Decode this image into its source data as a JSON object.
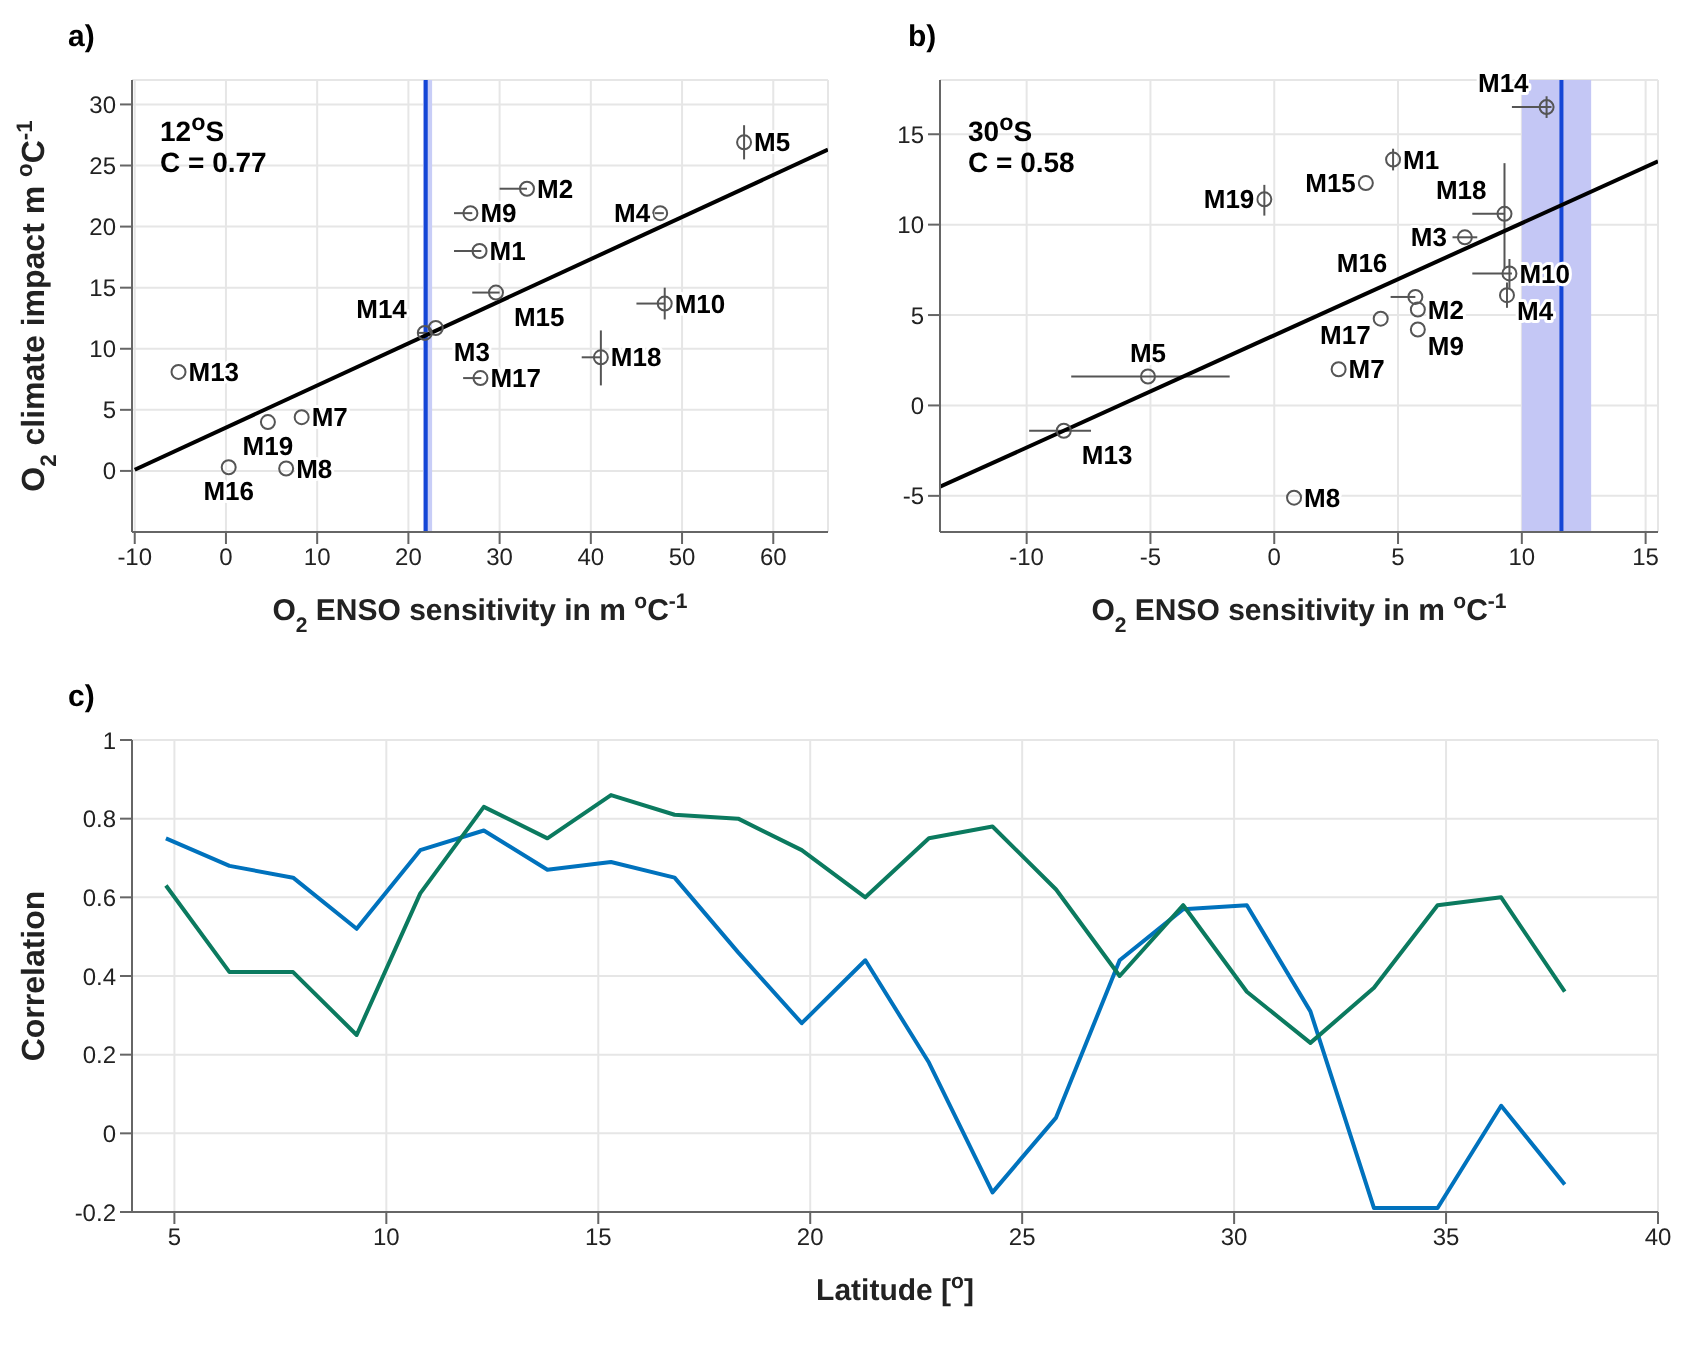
{
  "chart_data": [
    {
      "type": "scatter",
      "title": "a)",
      "xlabel": "O$_{2}$ ENSO sensitivity in m $^{o}$C$^{-1}$",
      "ylabel": "O$_{2}$ climate impact m $^{o}$C$^{-1}$",
      "xlim": [
        -10.3,
        66
      ],
      "xticks": [
        -10,
        0,
        10,
        20,
        30,
        40,
        50,
        60
      ],
      "ylim": [
        -5,
        32
      ],
      "yticks": [
        0,
        5,
        10,
        15,
        20,
        25,
        30
      ],
      "grid": true,
      "series": [
        {
          "type": "scatter",
          "marker": "circle",
          "color": "#555555",
          "x": [
            27.8,
            33,
            23,
            47.6,
            56.8,
            8.3,
            6.6,
            26.8,
            48.1,
            -5.2,
            21.8,
            29.6,
            0.3,
            27.9,
            41.1,
            4.6
          ],
          "values": [
            18,
            23.1,
            11.7,
            21.1,
            26.9,
            4.4,
            0.2,
            21.1,
            13.7,
            8.1,
            11.3,
            14.6,
            0.3,
            7.6,
            9.3,
            4.0
          ],
          "errors": [
            null,
            null,
            null,
            null,
            [
              25.5,
              28.3
            ],
            null,
            null,
            null,
            [
              12.4,
              15
            ],
            null,
            null,
            null,
            null,
            null,
            [
              7,
              11.5
            ],
            null
          ],
          "xerrors": [
            [
              25,
              28
            ],
            [
              30,
              33
            ],
            null,
            [
              47,
              48
            ],
            null,
            null,
            null,
            [
              25,
              27
            ],
            [
              45,
              48.1
            ],
            null,
            [
              21,
              22
            ],
            [
              27,
              30
            ],
            null,
            [
              26,
              28
            ],
            [
              39,
              41.1
            ],
            null
          ]
        },
        {
          "type": "line",
          "color": "#000000",
          "x": [
            -10,
            66
          ],
          "values": [
            0.1,
            26.3
          ]
        }
      ],
      "ref_lines": [
        {
          "axis": "x",
          "value": 21.9,
          "color": "#1446d6"
        }
      ],
      "bands": [
        {
          "axis": "x",
          "from": 21.6,
          "to": 22.6,
          "color": "#c8cdf7"
        }
      ],
      "annotations": [
        "12$^{o}$S",
        "C = 0.77",
        {
          "text": "M1",
          "x": 27.8,
          "y": 18
        },
        {
          "text": "M2",
          "x": 33,
          "y": 23.1
        },
        {
          "text": "M3",
          "x": 23,
          "y": 11.7
        },
        {
          "text": "M4",
          "x": 47.6,
          "y": 21.1
        },
        {
          "text": "M5",
          "x": 56.8,
          "y": 26.9
        },
        {
          "text": "M7",
          "x": 8.3,
          "y": 4.4
        },
        {
          "text": "M8",
          "x": 6.6,
          "y": 0.2
        },
        {
          "text": "M9",
          "x": 26.8,
          "y": 21.1
        },
        {
          "text": "M10",
          "x": 48.1,
          "y": 13.7
        },
        {
          "text": "M13",
          "x": -5.2,
          "y": 8.1
        },
        {
          "text": "M14",
          "x": 21.8,
          "y": 11.3
        },
        {
          "text": "M15",
          "x": 29.6,
          "y": 14.6
        },
        {
          "text": "M16",
          "x": 0.3,
          "y": 0.3
        },
        {
          "text": "M17",
          "x": 27.9,
          "y": 7.6
        },
        {
          "text": "M18",
          "x": 41.1,
          "y": 9.3
        },
        {
          "text": "M19",
          "x": 4.6,
          "y": 4.0
        }
      ]
    },
    {
      "type": "scatter",
      "title": "b)",
      "xlabel": "O$_{2}$ ENSO sensitivity in m $^{o}$C$^{-1}$",
      "xlim": [
        -13.5,
        15.5
      ],
      "xticks": [
        -10,
        -5,
        0,
        5,
        10,
        15
      ],
      "ylim": [
        -7,
        18
      ],
      "yticks": [
        -5,
        0,
        5,
        10,
        15
      ],
      "grid": true,
      "series": [
        {
          "type": "scatter",
          "marker": "circle",
          "color": "#555555",
          "x": [
            4.8,
            5.8,
            7.7,
            9.4,
            -5.1,
            2.6,
            0.8,
            5.8,
            9.5,
            -8.5,
            11,
            3.7,
            5.7,
            4.3,
            9.3,
            -0.4
          ],
          "values": [
            13.6,
            5.3,
            9.3,
            6.1,
            1.6,
            2.0,
            -5.1,
            4.2,
            7.3,
            -1.4,
            16.5,
            12.3,
            6.0,
            4.8,
            10.6,
            11.4
          ],
          "errors": [
            [
              13,
              14.2
            ],
            null,
            null,
            [
              5.4,
              6.8
            ],
            null,
            null,
            null,
            null,
            [
              6.5,
              8.1
            ],
            null,
            [
              15.9,
              17.1
            ],
            null,
            null,
            null,
            [
              7.6,
              13.4
            ],
            [
              10.5,
              12.2
            ]
          ],
          "xerrors": [
            null,
            null,
            [
              7.2,
              8.2
            ],
            null,
            [
              -8.2,
              -1.8
            ],
            null,
            null,
            null,
            [
              8,
              9.6
            ],
            [
              -9.9,
              -7.4
            ],
            [
              9.6,
              11.2
            ],
            null,
            [
              4.7,
              5.7
            ],
            null,
            [
              8,
              9.3
            ],
            null
          ]
        },
        {
          "type": "line",
          "color": "#000000",
          "x": [
            -13.5,
            15.5
          ],
          "values": [
            -4.5,
            13.5
          ]
        }
      ],
      "ref_lines": [
        {
          "axis": "x",
          "value": 11.6,
          "color": "#1446d6"
        }
      ],
      "bands": [
        {
          "axis": "x",
          "from": 10,
          "to": 12.8,
          "color": "#c4c7f5"
        }
      ],
      "annotations": [
        "30$^{o}$S",
        "C = 0.58",
        {
          "text": "M1",
          "x": 4.8,
          "y": 13.6
        },
        {
          "text": "M2",
          "x": 5.8,
          "y": 5.3
        },
        {
          "text": "M3",
          "x": 7.7,
          "y": 9.3
        },
        {
          "text": "M4",
          "x": 9.4,
          "y": 6.1
        },
        {
          "text": "M5",
          "x": -5.1,
          "y": 1.6
        },
        {
          "text": "M7",
          "x": 2.6,
          "y": 2.0
        },
        {
          "text": "M8",
          "x": 0.8,
          "y": -5.1
        },
        {
          "text": "M9",
          "x": 5.8,
          "y": 4.2
        },
        {
          "text": "M10",
          "x": 9.5,
          "y": 7.3
        },
        {
          "text": "M13",
          "x": -8.5,
          "y": -1.4
        },
        {
          "text": "M14",
          "x": 11,
          "y": 16.5
        },
        {
          "text": "M15",
          "x": 3.7,
          "y": 12.3
        },
        {
          "text": "M16",
          "x": 5.7,
          "y": 6.0
        },
        {
          "text": "M17",
          "x": 4.3,
          "y": 4.8
        },
        {
          "text": "M18",
          "x": 9.3,
          "y": 10.6
        },
        {
          "text": "M19",
          "x": -0.4,
          "y": 11.4
        }
      ]
    },
    {
      "type": "line",
      "title": "c)",
      "xlabel": "Latitude [$^{o}$]",
      "ylabel": "Correlation",
      "xlim": [
        4,
        40
      ],
      "xticks": [
        5,
        10,
        15,
        20,
        25,
        30,
        35,
        40
      ],
      "ylim": [
        -0.2,
        1
      ],
      "yticks": [
        -0.2,
        0,
        0.2,
        0.4,
        0.6,
        0.8,
        1
      ],
      "grid": true,
      "x": [
        4.8,
        6.3,
        7.8,
        9.3,
        10.8,
        12.3,
        13.8,
        15.3,
        16.8,
        18.3,
        19.8,
        21.3,
        22.8,
        24.3,
        25.8,
        27.3,
        28.8,
        30.3,
        31.8,
        33.3,
        34.8,
        36.3,
        37.8
      ],
      "series": [
        {
          "color": "#0072bd",
          "values": [
            0.75,
            0.68,
            0.65,
            0.52,
            0.72,
            0.77,
            0.67,
            0.69,
            0.65,
            0.46,
            0.28,
            0.44,
            0.18,
            -0.15,
            0.04,
            0.44,
            0.57,
            0.58,
            0.31,
            -0.19,
            -0.19,
            0.07,
            -0.13
          ]
        },
        {
          "color": "#0b7a5f",
          "values": [
            0.63,
            0.41,
            0.41,
            0.25,
            0.61,
            0.83,
            0.75,
            0.86,
            0.81,
            0.8,
            0.72,
            0.6,
            0.75,
            0.78,
            0.62,
            0.4,
            0.58,
            0.36,
            0.23,
            0.37,
            0.58,
            0.6,
            0.36
          ]
        }
      ]
    }
  ]
}
